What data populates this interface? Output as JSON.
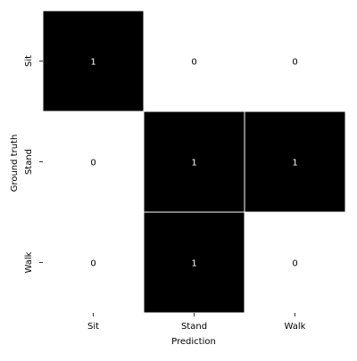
{
  "chart_data": {
    "type": "heatmap",
    "title": "",
    "xlabel": "Prediction",
    "ylabel": "Ground truth",
    "x_categories": [
      "Sit",
      "Stand",
      "Walk"
    ],
    "y_categories": [
      "Sit",
      "Stand",
      "Walk"
    ],
    "values": [
      [
        1,
        0,
        0
      ],
      [
        0,
        1,
        1
      ],
      [
        0,
        1,
        0
      ]
    ],
    "value_range": [
      0,
      1
    ],
    "colors": {
      "low": "#ffffff",
      "high": "#000000",
      "text_on_low": "#000000",
      "text_on_high": "#ffffff",
      "cell_border": "#ffffff"
    },
    "grid": false,
    "legend": "none"
  }
}
